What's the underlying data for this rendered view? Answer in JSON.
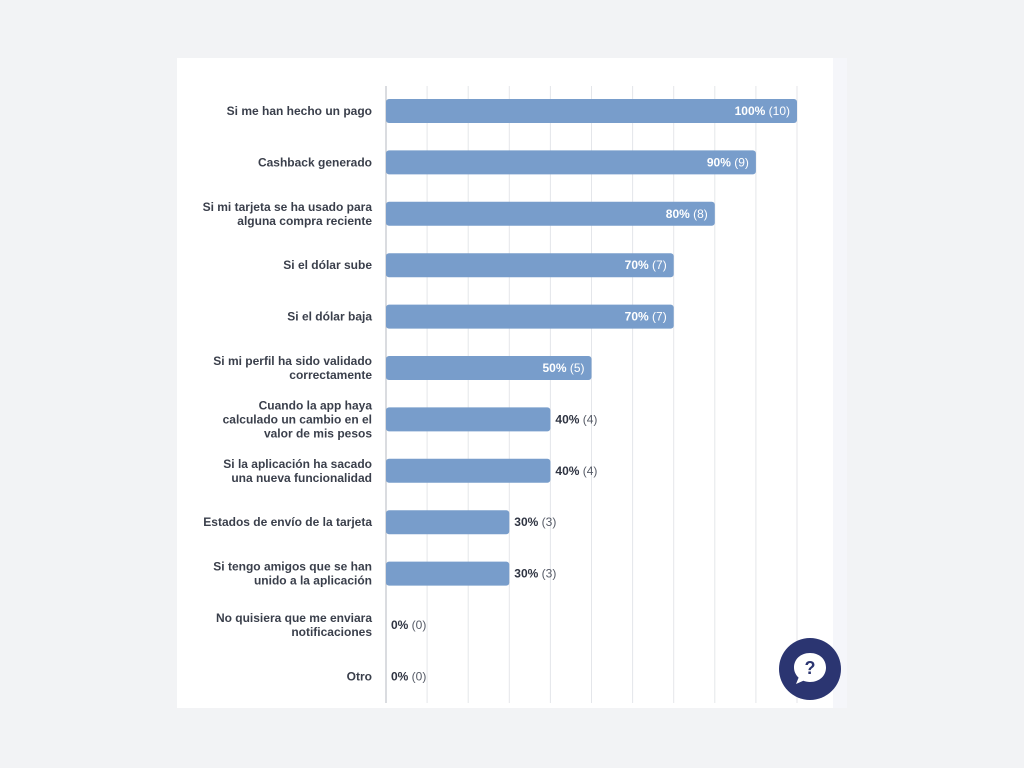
{
  "chart_data": {
    "type": "bar",
    "orientation": "horizontal",
    "categories": [
      [
        "Si me han hecho un pago"
      ],
      [
        "Cashback generado"
      ],
      [
        "Si mi tarjeta se ha usado para",
        "alguna compra reciente"
      ],
      [
        "Si el dólar sube"
      ],
      [
        "Si el dólar baja"
      ],
      [
        "Si mi perfil ha sido validado",
        "correctamente"
      ],
      [
        "Cuando la app haya",
        "calculado un cambio en el",
        "valor de mis pesos"
      ],
      [
        "Si la aplicación ha sacado",
        "una nueva funcionalidad"
      ],
      [
        "Estados de envío de la tarjeta"
      ],
      [
        "Si tengo amigos que se han",
        "unido a la aplicación"
      ],
      [
        "No quisiera que me enviara",
        "notificaciones"
      ],
      [
        "Otro"
      ]
    ],
    "values": [
      100,
      90,
      80,
      70,
      70,
      50,
      40,
      40,
      30,
      30,
      0,
      0
    ],
    "counts": [
      10,
      9,
      8,
      7,
      7,
      5,
      4,
      4,
      3,
      3,
      0,
      0
    ],
    "percent_labels": [
      "100%",
      "90%",
      "80%",
      "70%",
      "70%",
      "50%",
      "40%",
      "40%",
      "30%",
      "30%",
      "0%",
      "0%"
    ],
    "count_labels": [
      "(10)",
      "(9)",
      "(8)",
      "(7)",
      "(7)",
      "(5)",
      "(4)",
      "(4)",
      "(3)",
      "(3)",
      "(0)",
      "(0)"
    ],
    "xlim": [
      0,
      100
    ],
    "grid": true,
    "legend": "none",
    "colors": {
      "bar": "#789dcb",
      "grid": "#e4e6ea",
      "axis": "#b5b9c0",
      "label": "#3a3f4b",
      "value_inside": "#ffffff",
      "value_outside_pct": "#2f3442",
      "value_outside_count": "#555a66"
    }
  },
  "help_widget": {
    "icon": "question-bubble-icon",
    "color": "#2b3571"
  }
}
